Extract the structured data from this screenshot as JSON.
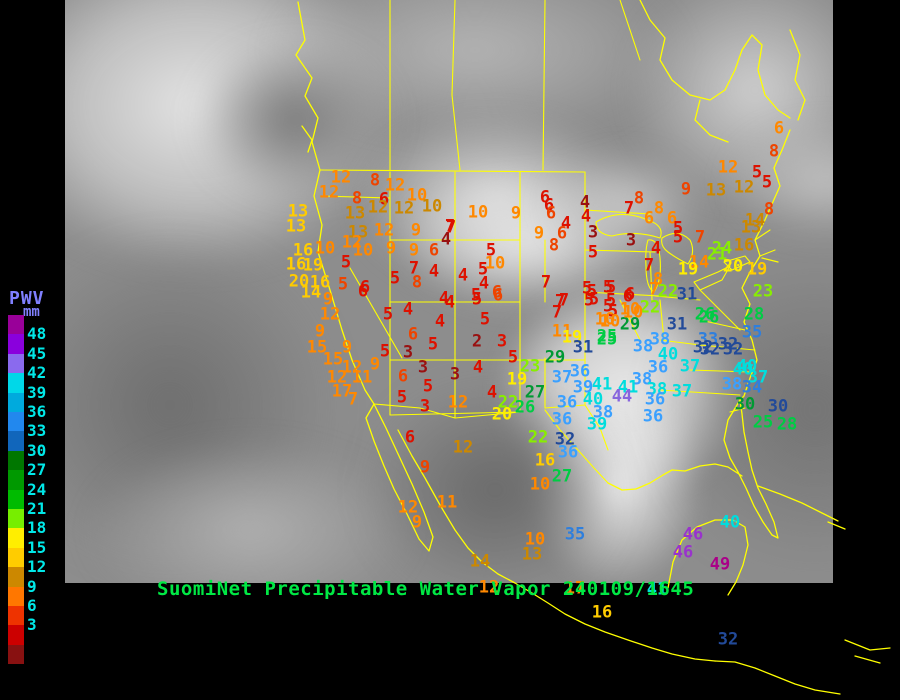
{
  "footer": {
    "title": "SuomiNet Precipitable Water Vapor 240109/1645",
    "color": "#00e844"
  },
  "legend": {
    "title": "PWV",
    "unit": "mm",
    "title_color": "#8080ff",
    "label_color": "#00e8e8",
    "labels": [
      "48",
      "45",
      "42",
      "39",
      "36",
      "33",
      "30",
      "27",
      "24",
      "21",
      "18",
      "15",
      "12",
      "9",
      "6",
      "3"
    ],
    "segment_colors": [
      "#990099",
      "#8a00dd",
      "#8a6aee",
      "#00d8e8",
      "#00aadd",
      "#2288ee",
      "#1166bb",
      "#007700",
      "#009900",
      "#00bb00",
      "#77ee00",
      "#ffee00",
      "#ffcc00",
      "#cc8800",
      "#ff7700",
      "#ee3300",
      "#cc0000",
      "#881111"
    ]
  },
  "map_line_color": "#ffff00",
  "palette": {
    "red": "#dd1100",
    "dred": "#991111",
    "ored": "#ee4400",
    "or": "#ff8800",
    "brn": "#cc8800",
    "gold": "#ffcc00",
    "yel": "#ffee00",
    "chart": "#88ee00",
    "grn": "#00cc44",
    "dgrn": "#009933",
    "navy": "#224a99",
    "steel": "#2f7fdd",
    "blu": "#3aa0ff",
    "cyn": "#00dddd",
    "vio": "#8866dd",
    "pur": "#9933cc",
    "mag": "#aa0088"
  },
  "stations": [
    [
      12,
      341,
      178,
      "or"
    ],
    [
      8,
      375,
      181,
      "ored"
    ],
    [
      12,
      395,
      186,
      "or"
    ],
    [
      10,
      417,
      196,
      "or"
    ],
    [
      12,
      329,
      193,
      "or"
    ],
    [
      8,
      357,
      199,
      "ored"
    ],
    [
      6,
      384,
      200,
      "red"
    ],
    [
      13,
      298,
      212,
      "gold"
    ],
    [
      12,
      378,
      208,
      "brn"
    ],
    [
      12,
      404,
      209,
      "brn"
    ],
    [
      10,
      432,
      207,
      "brn"
    ],
    [
      13,
      355,
      214,
      "brn"
    ],
    [
      13,
      296,
      227,
      "gold"
    ],
    [
      13,
      358,
      233,
      "brn"
    ],
    [
      12,
      384,
      231,
      "or"
    ],
    [
      9,
      416,
      231,
      "or"
    ],
    [
      7,
      450,
      227,
      "red"
    ],
    [
      4,
      446,
      240,
      "dred"
    ],
    [
      16,
      303,
      251,
      "gold"
    ],
    [
      10,
      325,
      249,
      "or"
    ],
    [
      12,
      352,
      243,
      "or"
    ],
    [
      10,
      363,
      251,
      "or"
    ],
    [
      9,
      391,
      249,
      "or"
    ],
    [
      9,
      414,
      251,
      "or"
    ],
    [
      6,
      434,
      251,
      "ored"
    ],
    [
      16,
      296,
      265,
      "gold"
    ],
    [
      19,
      313,
      266,
      "gold"
    ],
    [
      5,
      346,
      263,
      "red"
    ],
    [
      20,
      299,
      282,
      "gold"
    ],
    [
      16,
      320,
      283,
      "gold"
    ],
    [
      5,
      343,
      285,
      "ored"
    ],
    [
      7,
      414,
      269,
      "red"
    ],
    [
      4,
      434,
      272,
      "red"
    ],
    [
      5,
      395,
      279,
      "red"
    ],
    [
      8,
      417,
      283,
      "ored"
    ],
    [
      6,
      365,
      288,
      "red"
    ],
    [
      14,
      311,
      293,
      "gold"
    ],
    [
      10,
      478,
      213,
      "or"
    ],
    [
      9,
      516,
      214,
      "or"
    ],
    [
      6,
      545,
      198,
      "red"
    ],
    [
      6,
      549,
      206,
      "red"
    ],
    [
      6,
      551,
      214,
      "ored"
    ],
    [
      4,
      585,
      203,
      "dred"
    ],
    [
      4,
      586,
      217,
      "red"
    ],
    [
      7,
      451,
      228,
      "red"
    ],
    [
      4,
      566,
      224,
      "red"
    ],
    [
      9,
      539,
      234,
      "or"
    ],
    [
      6,
      562,
      234,
      "ored"
    ],
    [
      3,
      593,
      233,
      "dred"
    ],
    [
      8,
      554,
      246,
      "ored"
    ],
    [
      5,
      491,
      251,
      "red"
    ],
    [
      5,
      593,
      253,
      "red"
    ],
    [
      10,
      495,
      264,
      "or"
    ],
    [
      5,
      483,
      270,
      "red"
    ],
    [
      4,
      463,
      276,
      "red"
    ],
    [
      4,
      484,
      284,
      "red"
    ],
    [
      7,
      546,
      283,
      "red"
    ],
    [
      5,
      476,
      296,
      "red"
    ],
    [
      6,
      498,
      296,
      "ored"
    ],
    [
      4,
      444,
      299,
      "red"
    ],
    [
      5,
      587,
      289,
      "red"
    ],
    [
      5,
      611,
      288,
      "red"
    ],
    [
      7,
      564,
      301,
      "red"
    ],
    [
      5,
      589,
      301,
      "red"
    ],
    [
      5,
      611,
      301,
      "red"
    ],
    [
      6,
      779,
      129,
      "or"
    ],
    [
      8,
      774,
      152,
      "ored"
    ],
    [
      12,
      728,
      168,
      "or"
    ],
    [
      5,
      757,
      173,
      "red"
    ],
    [
      12,
      744,
      188,
      "brn"
    ],
    [
      5,
      767,
      183,
      "red"
    ],
    [
      9,
      686,
      190,
      "ored"
    ],
    [
      13,
      716,
      191,
      "brn"
    ],
    [
      8,
      639,
      199,
      "ored"
    ],
    [
      7,
      629,
      209,
      "red"
    ],
    [
      8,
      659,
      209,
      "or"
    ],
    [
      6,
      649,
      219,
      "or"
    ],
    [
      6,
      672,
      219,
      "or"
    ],
    [
      8,
      769,
      210,
      "ored"
    ],
    [
      14,
      755,
      221,
      "brn"
    ],
    [
      13,
      751,
      228,
      "brn"
    ],
    [
      5,
      678,
      229,
      "red"
    ],
    [
      5,
      678,
      238,
      "red"
    ],
    [
      3,
      631,
      241,
      "dred"
    ],
    [
      4,
      656,
      249,
      "red"
    ],
    [
      7,
      700,
      238,
      "ored"
    ],
    [
      16,
      744,
      246,
      "brn"
    ],
    [
      24,
      722,
      249,
      "chart"
    ],
    [
      21,
      717,
      255,
      "chart"
    ],
    [
      14,
      699,
      263,
      "or"
    ],
    [
      7,
      649,
      266,
      "red"
    ],
    [
      20,
      733,
      267,
      "yel"
    ],
    [
      19,
      757,
      270,
      "gold"
    ],
    [
      23,
      763,
      292,
      "chart"
    ],
    [
      26,
      709,
      318,
      "grn"
    ],
    [
      28,
      754,
      315,
      "grn"
    ],
    [
      35,
      752,
      333,
      "steel"
    ],
    [
      33,
      708,
      340,
      "steel"
    ],
    [
      8,
      658,
      280,
      "or"
    ],
    [
      7,
      654,
      290,
      "or"
    ],
    [
      19,
      688,
      270,
      "yel"
    ],
    [
      5,
      608,
      288,
      "red"
    ],
    [
      6,
      628,
      297,
      "red"
    ],
    [
      5,
      608,
      307,
      "red"
    ],
    [
      10,
      630,
      310,
      "or"
    ],
    [
      22,
      668,
      292,
      "chart"
    ],
    [
      31,
      687,
      295,
      "navy"
    ],
    [
      22,
      650,
      308,
      "chart"
    ],
    [
      10,
      605,
      320,
      "or"
    ],
    [
      29,
      630,
      325,
      "dgrn"
    ],
    [
      25,
      607,
      337,
      "grn"
    ],
    [
      26,
      705,
      315,
      "grn"
    ],
    [
      31,
      677,
      325,
      "navy"
    ],
    [
      38,
      660,
      340,
      "blu"
    ],
    [
      38,
      643,
      347,
      "blu"
    ],
    [
      32,
      703,
      348,
      "navy"
    ],
    [
      32,
      728,
      345,
      "navy"
    ],
    [
      40,
      668,
      355,
      "cyn"
    ],
    [
      37,
      690,
      367,
      "cyn"
    ],
    [
      40,
      747,
      367,
      "cyn"
    ],
    [
      36,
      658,
      368,
      "blu"
    ],
    [
      6,
      497,
      293,
      "ored"
    ],
    [
      7,
      560,
      302,
      "red"
    ],
    [
      5,
      592,
      292,
      "red"
    ],
    [
      5,
      594,
      300,
      "red"
    ],
    [
      7,
      557,
      313,
      "red"
    ],
    [
      5,
      613,
      312,
      "red"
    ],
    [
      6,
      630,
      295,
      "red"
    ],
    [
      10,
      633,
      313,
      "or"
    ],
    [
      10,
      610,
      322,
      "or"
    ],
    [
      11,
      562,
      332,
      "or"
    ],
    [
      19,
      572,
      338,
      "yel"
    ],
    [
      25,
      607,
      340,
      "grn"
    ],
    [
      31,
      583,
      348,
      "navy"
    ],
    [
      3,
      502,
      342,
      "red"
    ],
    [
      5,
      513,
      358,
      "red"
    ],
    [
      29,
      555,
      358,
      "dgrn"
    ],
    [
      23,
      530,
      367,
      "chart"
    ],
    [
      19,
      517,
      380,
      "yel"
    ],
    [
      36,
      580,
      372,
      "blu"
    ],
    [
      37,
      562,
      378,
      "blu"
    ],
    [
      38,
      642,
      380,
      "blu"
    ],
    [
      39,
      583,
      388,
      "blu"
    ],
    [
      41,
      602,
      385,
      "cyn"
    ],
    [
      41,
      628,
      388,
      "cyn"
    ],
    [
      27,
      535,
      393,
      "dgrn"
    ],
    [
      22,
      508,
      403,
      "chart"
    ],
    [
      26,
      525,
      408,
      "grn"
    ],
    [
      40,
      593,
      400,
      "cyn"
    ],
    [
      44,
      622,
      397,
      "vio"
    ],
    [
      36,
      567,
      403,
      "blu"
    ],
    [
      38,
      603,
      413,
      "blu"
    ],
    [
      20,
      502,
      415,
      "yel"
    ],
    [
      36,
      562,
      420,
      "blu"
    ],
    [
      39,
      597,
      425,
      "cyn"
    ],
    [
      38,
      657,
      390,
      "cyn"
    ],
    [
      36,
      655,
      400,
      "blu"
    ],
    [
      36,
      653,
      417,
      "blu"
    ],
    [
      22,
      538,
      438,
      "chart"
    ],
    [
      32,
      565,
      440,
      "navy"
    ],
    [
      36,
      568,
      453,
      "blu"
    ],
    [
      16,
      545,
      461,
      "gold"
    ],
    [
      27,
      562,
      477,
      "grn"
    ],
    [
      10,
      540,
      485,
      "or"
    ],
    [
      32,
      710,
      350,
      "navy"
    ],
    [
      32,
      733,
      350,
      "navy"
    ],
    [
      40,
      743,
      370,
      "cyn"
    ],
    [
      37,
      758,
      378,
      "cyn"
    ],
    [
      38,
      732,
      385,
      "blu"
    ],
    [
      34,
      752,
      388,
      "steel"
    ],
    [
      37,
      682,
      392,
      "cyn"
    ],
    [
      30,
      745,
      405,
      "dgrn"
    ],
    [
      30,
      778,
      407,
      "navy"
    ],
    [
      25,
      763,
      423,
      "grn"
    ],
    [
      28,
      787,
      425,
      "grn"
    ],
    [
      9,
      328,
      300,
      "or"
    ],
    [
      6,
      363,
      292,
      "red"
    ],
    [
      12,
      330,
      315,
      "or"
    ],
    [
      9,
      320,
      332,
      "or"
    ],
    [
      5,
      388,
      315,
      "red"
    ],
    [
      4,
      408,
      310,
      "red"
    ],
    [
      4,
      450,
      303,
      "red"
    ],
    [
      5,
      477,
      300,
      "red"
    ],
    [
      4,
      440,
      322,
      "red"
    ],
    [
      5,
      485,
      320,
      "red"
    ],
    [
      6,
      413,
      335,
      "ored"
    ],
    [
      15,
      317,
      348,
      "or"
    ],
    [
      9,
      347,
      348,
      "or"
    ],
    [
      5,
      385,
      352,
      "red"
    ],
    [
      3,
      408,
      353,
      "dred"
    ],
    [
      5,
      433,
      345,
      "red"
    ],
    [
      2,
      477,
      342,
      "dred"
    ],
    [
      15,
      333,
      360,
      "or"
    ],
    [
      9,
      375,
      365,
      "or"
    ],
    [
      12,
      352,
      368,
      "or"
    ],
    [
      3,
      423,
      368,
      "dred"
    ],
    [
      6,
      403,
      377,
      "ored"
    ],
    [
      3,
      455,
      375,
      "dred"
    ],
    [
      4,
      478,
      368,
      "red"
    ],
    [
      12,
      337,
      378,
      "or"
    ],
    [
      11,
      362,
      378,
      "or"
    ],
    [
      5,
      428,
      387,
      "red"
    ],
    [
      4,
      492,
      393,
      "red"
    ],
    [
      17,
      342,
      392,
      "or"
    ],
    [
      7,
      353,
      400,
      "or"
    ],
    [
      5,
      402,
      398,
      "red"
    ],
    [
      3,
      425,
      407,
      "red"
    ],
    [
      12,
      458,
      403,
      "or"
    ],
    [
      6,
      410,
      438,
      "red"
    ],
    [
      12,
      463,
      448,
      "brn"
    ],
    [
      9,
      425,
      468,
      "ored"
    ],
    [
      12,
      408,
      508,
      "or"
    ],
    [
      11,
      447,
      503,
      "or"
    ],
    [
      9,
      417,
      523,
      "or"
    ],
    [
      10,
      535,
      540,
      "or"
    ],
    [
      35,
      575,
      535,
      "steel"
    ],
    [
      13,
      532,
      555,
      "brn"
    ],
    [
      14,
      480,
      562,
      "brn"
    ],
    [
      40,
      730,
      523,
      "cyn"
    ],
    [
      46,
      693,
      535,
      "pur"
    ],
    [
      46,
      683,
      553,
      "pur"
    ],
    [
      49,
      720,
      565,
      "mag"
    ],
    [
      41,
      657,
      590,
      "cyn"
    ],
    [
      16,
      602,
      613,
      "gold"
    ],
    [
      32,
      728,
      640,
      "navy"
    ],
    [
      12,
      489,
      588,
      "or"
    ],
    [
      17,
      575,
      589,
      "or"
    ]
  ]
}
